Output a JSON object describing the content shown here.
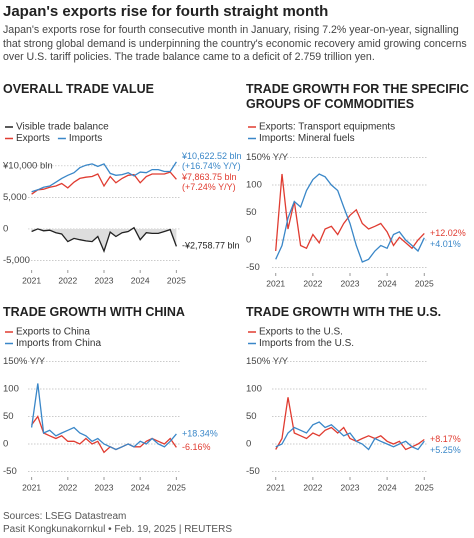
{
  "title": "Japan's exports rise for fourth straight month",
  "subtitle": "Japan's exports rose for fourth consecutive month in January, rising 7.2% year-on-year, signalling that strong global demand is underpinning the country's economic recovery amid growing concerns over U.S. tariff policies. The trade balance came to a deficit of 2.759 trillion yen.",
  "source": "Sources: LSEG Datastream",
  "byline": "Pasit Kongkunakornkul • Feb. 19, 2025 | REUTERS",
  "chart_data": [
    {
      "type": "line",
      "title": "OVERALL TRADE VALUE",
      "x": [
        2021,
        2021.17,
        2021.33,
        2021.5,
        2021.67,
        2021.83,
        2022,
        2022.17,
        2022.33,
        2022.5,
        2022.67,
        2022.83,
        2023,
        2023.17,
        2023.33,
        2023.5,
        2023.67,
        2023.83,
        2024,
        2024.17,
        2024.33,
        2024.5,
        2024.67,
        2024.83,
        2025
      ],
      "xlim": [
        2020.9,
        2025.1
      ],
      "xticks": [
        2021,
        2022,
        2023,
        2024,
        2025
      ],
      "ylim": [
        -6500,
        12500
      ],
      "yticks": [
        {
          "value": 10000,
          "label": "¥10,000 bln"
        },
        {
          "value": 5000,
          "label": "5,000"
        },
        0,
        {
          "value": -5000,
          "label": "-5,000"
        }
      ],
      "grid": true,
      "series": [
        {
          "name": "Visible trade balance",
          "color": "#222222",
          "shaded": true,
          "values": [
            -400,
            0,
            -300,
            -200,
            -600,
            -800,
            -2000,
            -1500,
            -1700,
            -1900,
            -2000,
            -1200,
            -3500,
            -500,
            -1200,
            -600,
            -400,
            200,
            -1700,
            -600,
            -700,
            -700,
            -400,
            -100,
            -2758.77
          ],
          "end_label": [
            "-¥2,758.77 bln"
          ]
        },
        {
          "name": "Exports",
          "color": "#e03c31",
          "values": [
            5500,
            6200,
            6300,
            6600,
            6800,
            7200,
            6500,
            7400,
            8000,
            8200,
            8300,
            8700,
            6800,
            8300,
            7300,
            8000,
            8500,
            8600,
            7300,
            8300,
            8700,
            8700,
            8700,
            9000,
            7863.75
          ],
          "end_label": [
            "¥7,863.75 bln",
            "(+7.24% Y/Y)"
          ]
        },
        {
          "name": "Imports",
          "color": "#3a87c8",
          "values": [
            5900,
            6200,
            6600,
            6800,
            7400,
            8000,
            8500,
            8900,
            9700,
            10100,
            10300,
            9900,
            10300,
            8800,
            8500,
            8600,
            8900,
            8400,
            9000,
            8900,
            9400,
            9400,
            9100,
            9100,
            10622.52
          ],
          "end_label": [
            "¥10,622.52 bln",
            "(+16.74% Y/Y)"
          ]
        }
      ]
    },
    {
      "type": "line",
      "title": "TRADE GROWTH FOR THE SPECIFIC GROUPS OF COMMODITIES",
      "x": [
        2021,
        2021.17,
        2021.33,
        2021.5,
        2021.67,
        2021.83,
        2022,
        2022.17,
        2022.33,
        2022.5,
        2022.67,
        2022.83,
        2023,
        2023.17,
        2023.33,
        2023.5,
        2023.67,
        2023.83,
        2024,
        2024.17,
        2024.33,
        2024.5,
        2024.67,
        2024.83,
        2025
      ],
      "xlim": [
        2020.9,
        2025.1
      ],
      "xticks": [
        2021,
        2022,
        2023,
        2024,
        2025
      ],
      "ylim": [
        -60,
        160
      ],
      "yticks": [
        {
          "value": 150,
          "label": "150% Y/Y"
        },
        100,
        50,
        0,
        -50
      ],
      "grid": true,
      "series": [
        {
          "name": "Exports: Transport equipments",
          "color": "#e03c31",
          "values": [
            -20,
            120,
            20,
            70,
            -10,
            -15,
            10,
            -5,
            20,
            25,
            10,
            30,
            45,
            55,
            30,
            20,
            25,
            30,
            15,
            -10,
            5,
            -5,
            -15,
            0,
            12.02
          ],
          "end_label": [
            "+12.02%"
          ]
        },
        {
          "name": "Imports: Mineral fuels",
          "color": "#3a87c8",
          "values": [
            -35,
            -10,
            40,
            70,
            60,
            90,
            110,
            120,
            115,
            100,
            90,
            60,
            30,
            -10,
            -40,
            -35,
            -20,
            -10,
            -15,
            10,
            15,
            0,
            -10,
            -20,
            4.01
          ],
          "end_label": [
            "+4.01%"
          ]
        }
      ]
    },
    {
      "type": "line",
      "title": "TRADE GROWTH WITH CHINA",
      "x": [
        2021,
        2021.17,
        2021.33,
        2021.5,
        2021.67,
        2021.83,
        2022,
        2022.17,
        2022.33,
        2022.5,
        2022.67,
        2022.83,
        2023,
        2023.17,
        2023.33,
        2023.5,
        2023.67,
        2023.83,
        2024,
        2024.17,
        2024.33,
        2024.5,
        2024.67,
        2024.83,
        2025
      ],
      "xlim": [
        2020.9,
        2025.1
      ],
      "xticks": [
        2021,
        2022,
        2023,
        2024,
        2025
      ],
      "ylim": [
        -60,
        160
      ],
      "yticks": [
        {
          "value": 150,
          "label": "150% Y/Y"
        },
        100,
        50,
        0,
        -50
      ],
      "grid": true,
      "series": [
        {
          "name": "Exports to China",
          "color": "#e03c31",
          "values": [
            35,
            50,
            20,
            15,
            10,
            15,
            5,
            5,
            0,
            10,
            0,
            5,
            -15,
            -5,
            -10,
            -5,
            0,
            -5,
            -5,
            5,
            10,
            5,
            0,
            10,
            -6.16
          ],
          "end_label": [
            "-6.16%"
          ]
        },
        {
          "name": "Imports from China",
          "color": "#3a87c8",
          "values": [
            30,
            110,
            20,
            25,
            15,
            20,
            25,
            30,
            20,
            15,
            5,
            10,
            0,
            -5,
            -10,
            -5,
            0,
            -5,
            5,
            0,
            10,
            0,
            -5,
            5,
            18.34
          ],
          "end_label": [
            "+18.34%"
          ]
        }
      ]
    },
    {
      "type": "line",
      "title": "TRADE GROWTH WITH THE U.S.",
      "x": [
        2021,
        2021.17,
        2021.33,
        2021.5,
        2021.67,
        2021.83,
        2022,
        2022.17,
        2022.33,
        2022.5,
        2022.67,
        2022.83,
        2023,
        2023.17,
        2023.33,
        2023.5,
        2023.67,
        2023.83,
        2024,
        2024.17,
        2024.33,
        2024.5,
        2024.67,
        2024.83,
        2025
      ],
      "xlim": [
        2020.9,
        2025.1
      ],
      "xticks": [
        2021,
        2022,
        2023,
        2024,
        2025
      ],
      "ylim": [
        -60,
        160
      ],
      "yticks": [
        {
          "value": 150,
          "label": "150% Y/Y"
        },
        100,
        50,
        0,
        -50
      ],
      "grid": true,
      "series": [
        {
          "name": "Exports to the U.S.",
          "color": "#e03c31",
          "values": [
            -10,
            10,
            85,
            20,
            15,
            10,
            20,
            15,
            25,
            30,
            20,
            30,
            10,
            5,
            10,
            15,
            10,
            15,
            5,
            0,
            5,
            -10,
            -5,
            0,
            8.17
          ],
          "end_label": [
            "+8.17%"
          ]
        },
        {
          "name": "Imports from the U.S.",
          "color": "#3a87c8",
          "values": [
            -5,
            0,
            20,
            30,
            25,
            20,
            35,
            40,
            30,
            35,
            25,
            15,
            20,
            5,
            0,
            -10,
            10,
            5,
            0,
            -5,
            0,
            5,
            -5,
            -10,
            5.25
          ],
          "end_label": [
            "+5.25%"
          ]
        }
      ]
    }
  ]
}
